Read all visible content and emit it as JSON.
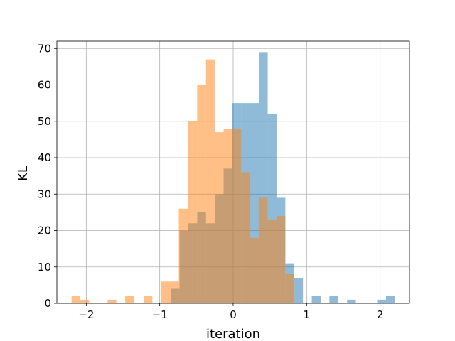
{
  "chart_data": {
    "type": "bar",
    "subtype": "overlaid-histogram",
    "title": "",
    "xlabel": "iteration",
    "ylabel": "KL",
    "xlim": [
      -2.4,
      2.4
    ],
    "ylim": [
      0,
      72
    ],
    "xticks": [
      -2,
      -1,
      0,
      1,
      2
    ],
    "xtick_labels": [
      "−2",
      "−1",
      "0",
      "1",
      "2"
    ],
    "yticks": [
      0,
      10,
      20,
      30,
      40,
      50,
      60,
      70
    ],
    "ytick_labels": [
      "0",
      "10",
      "20",
      "30",
      "40",
      "50",
      "60",
      "70"
    ],
    "grid": true,
    "legend": "none",
    "series": [
      {
        "color": "#1f77b4",
        "opacity": 0.5,
        "bins": [
          [
            -0.85,
            -0.73,
            4
          ],
          [
            -0.73,
            -0.61,
            20
          ],
          [
            -0.61,
            -0.49,
            22
          ],
          [
            -0.49,
            -0.37,
            25
          ],
          [
            -0.37,
            -0.25,
            22
          ],
          [
            -0.25,
            -0.13,
            30
          ],
          [
            -0.13,
            -0.01,
            37
          ],
          [
            -0.01,
            0.11,
            55
          ],
          [
            0.11,
            0.23,
            55
          ],
          [
            0.23,
            0.35,
            55
          ],
          [
            0.35,
            0.47,
            69
          ],
          [
            0.47,
            0.59,
            52
          ],
          [
            0.59,
            0.71,
            29
          ],
          [
            0.71,
            0.83,
            11
          ],
          [
            0.83,
            0.95,
            7
          ],
          [
            1.07,
            1.19,
            2
          ],
          [
            1.31,
            1.43,
            2
          ],
          [
            1.55,
            1.67,
            1
          ],
          [
            1.96,
            2.08,
            1
          ],
          [
            2.08,
            2.2,
            2
          ]
        ]
      },
      {
        "color": "#ff7f0e",
        "opacity": 0.5,
        "bins": [
          [
            -2.2,
            -2.08,
            2
          ],
          [
            -2.08,
            -1.96,
            1
          ],
          [
            -1.71,
            -1.59,
            1
          ],
          [
            -1.47,
            -1.35,
            2
          ],
          [
            -1.22,
            -1.1,
            2
          ],
          [
            -0.98,
            -0.86,
            6
          ],
          [
            -0.86,
            -0.74,
            6
          ],
          [
            -0.74,
            -0.61,
            26
          ],
          [
            -0.61,
            -0.49,
            50
          ],
          [
            -0.49,
            -0.37,
            60
          ],
          [
            -0.37,
            -0.25,
            67
          ],
          [
            -0.25,
            -0.13,
            47
          ],
          [
            -0.13,
            -0.01,
            48
          ],
          [
            -0.01,
            0.11,
            48
          ],
          [
            0.11,
            0.23,
            36
          ],
          [
            0.23,
            0.35,
            18
          ],
          [
            0.35,
            0.47,
            29
          ],
          [
            0.47,
            0.59,
            23
          ],
          [
            0.59,
            0.71,
            24
          ],
          [
            0.71,
            0.83,
            8
          ]
        ]
      }
    ]
  }
}
